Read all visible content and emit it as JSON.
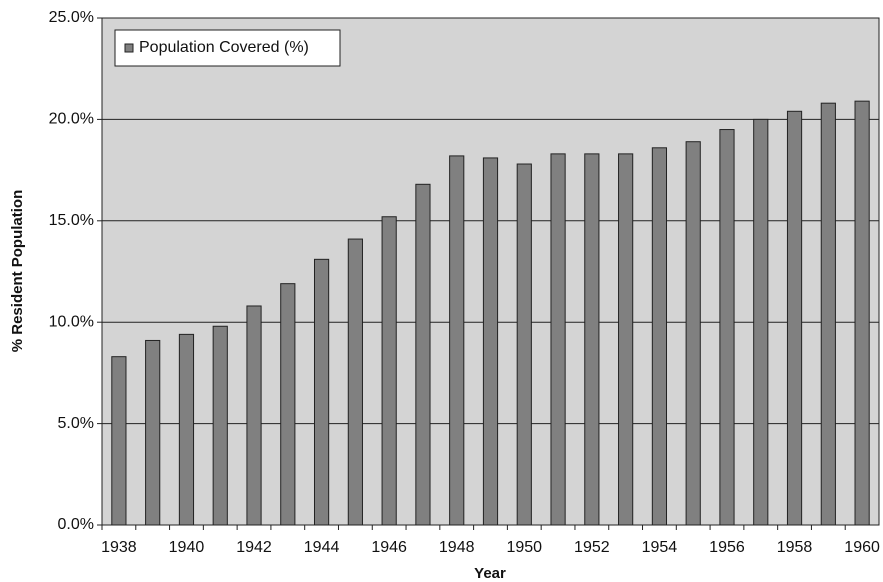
{
  "chart_data": {
    "type": "bar",
    "x_label": "Year",
    "y_label": "% Resident Population",
    "categories": [
      "1938",
      null,
      "1940",
      null,
      "1942",
      null,
      "1944",
      null,
      "1946",
      null,
      "1948",
      null,
      "1950",
      null,
      "1952",
      null,
      "1954",
      null,
      "1956",
      null,
      "1958",
      null,
      "1960"
    ],
    "series": [
      {
        "name": "Population Covered (%)",
        "color": "#808080",
        "values": [
          8.3,
          9.1,
          9.4,
          9.8,
          10.8,
          11.9,
          13.1,
          14.1,
          15.2,
          16.8,
          18.2,
          18.1,
          17.8,
          18.3,
          18.3,
          18.3,
          18.6,
          18.9,
          19.5,
          20.0,
          20.4,
          20.8,
          20.9
        ]
      }
    ],
    "ylim": [
      0,
      25
    ],
    "yticks": [
      {
        "value": 0,
        "label": "0.0%"
      },
      {
        "value": 5,
        "label": "5.0%"
      },
      {
        "value": 10,
        "label": "10.0%"
      },
      {
        "value": 15,
        "label": "15.0%"
      },
      {
        "value": 20,
        "label": "20.0%"
      },
      {
        "value": 25,
        "label": "25.0%"
      }
    ],
    "grid": true,
    "legend": "top-left"
  }
}
